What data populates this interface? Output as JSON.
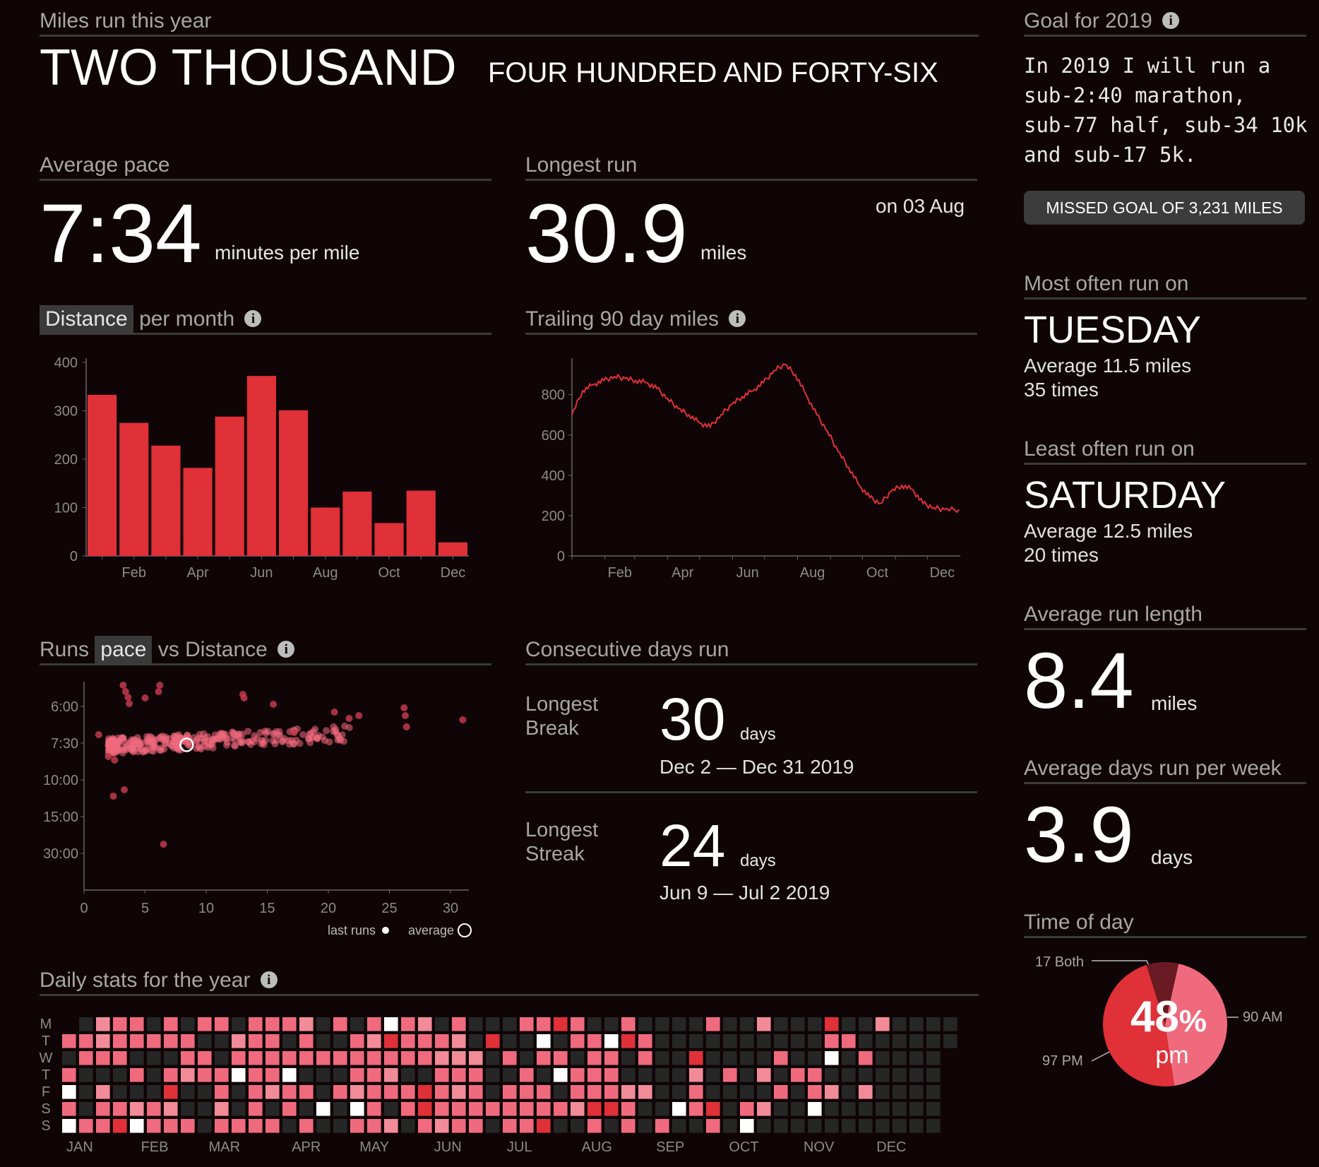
{
  "header": {
    "title": "Miles run this year",
    "big_number": "TWO THOUSAND",
    "small_number": "FOUR HUNDRED AND FORTY-SIX"
  },
  "average_pace": {
    "title": "Average pace",
    "value": "7:34",
    "unit": "minutes per mile"
  },
  "longest_run": {
    "title": "Longest run",
    "value": "30.9",
    "unit": "miles",
    "date": "on 03 Aug"
  },
  "distance_chart": {
    "title_highlight": "Distance",
    "title_rest": "per month"
  },
  "trailing_chart": {
    "title": "Trailing 90 day miles"
  },
  "scatter_chart": {
    "title_pre": "Runs",
    "title_highlight": "pace",
    "title_post": "vs Distance",
    "legend_last": "last runs",
    "legend_avg": "average"
  },
  "consecutive": {
    "title": "Consecutive days run",
    "break_label_1": "Longest",
    "break_label_2": "Break",
    "break_value": "30",
    "break_unit": "days",
    "break_range": "Dec 2 — Dec 31 2019",
    "streak_label_1": "Longest",
    "streak_label_2": "Streak",
    "streak_value": "24",
    "streak_unit": "days",
    "streak_range": "Jun 9 — Jul 2 2019"
  },
  "daily": {
    "title": "Daily stats for the year",
    "day_labels": [
      "M",
      "T",
      "W",
      "T",
      "F",
      "S",
      "S"
    ],
    "month_labels": [
      "JAN",
      "FEB",
      "MAR",
      "APR",
      "MAY",
      "JUN",
      "JUL",
      "AUG",
      "SEP",
      "OCT",
      "NOV",
      "DEC"
    ]
  },
  "goal": {
    "title": "Goal for 2019",
    "lines": [
      "In 2019 I will run a",
      "sub-2:40 marathon,",
      "sub-77 half, sub-34 10k",
      "and sub-17 5k."
    ],
    "missed": "MISSED GOAL OF 3,231 MILES"
  },
  "most_often": {
    "title": "Most often run on",
    "day": "TUESDAY",
    "avg": "Average 11.5 miles",
    "times": "35 times"
  },
  "least_often": {
    "title": "Least often run on",
    "day": "SATURDAY",
    "avg": "Average 12.5 miles",
    "times": "20 times"
  },
  "avg_run_length": {
    "title": "Average run length",
    "value": "8.4",
    "unit": "miles"
  },
  "avg_days_week": {
    "title": "Average days run per week",
    "value": "3.9",
    "unit": "days"
  },
  "time_of_day": {
    "title": "Time of day",
    "both_label": "17 Both",
    "am_label": "90 AM",
    "pm_label": "97 PM",
    "percent": "48",
    "percent_sign": "%",
    "center_label": "pm"
  },
  "colors": {
    "accent": "#e03038",
    "pink": "#f06a7e",
    "light": "#f28b98",
    "dark_cell": "#262626",
    "background": "#0f0406"
  },
  "chart_data": [
    {
      "type": "bar",
      "title": "Distance per month",
      "categories": [
        "Jan",
        "Feb",
        "Mar",
        "Apr",
        "May",
        "Jun",
        "Jul",
        "Aug",
        "Sep",
        "Oct",
        "Nov",
        "Dec"
      ],
      "values": [
        333,
        275,
        228,
        182,
        288,
        372,
        301,
        100,
        133,
        68,
        135,
        28
      ],
      "x_tick_labels": [
        "Feb",
        "Apr",
        "Jun",
        "Aug",
        "Oct",
        "Dec"
      ],
      "y_ticks": [
        0,
        100,
        200,
        300,
        400
      ],
      "ylim": [
        0,
        400
      ],
      "color": "#e03038"
    },
    {
      "type": "line",
      "title": "Trailing 90 day miles",
      "x": [
        0,
        10,
        20,
        30,
        40,
        50,
        60,
        70,
        80,
        90,
        100,
        110,
        120,
        130,
        140,
        150,
        160,
        170,
        180,
        190,
        200,
        210,
        220,
        230,
        240,
        250,
        260,
        270,
        280,
        290,
        300,
        310,
        320,
        330,
        340,
        350,
        364
      ],
      "x_unit": "day of year",
      "values": [
        700,
        820,
        850,
        870,
        890,
        880,
        870,
        860,
        830,
        780,
        730,
        700,
        660,
        640,
        700,
        750,
        790,
        820,
        860,
        920,
        950,
        900,
        800,
        700,
        620,
        520,
        440,
        350,
        290,
        260,
        320,
        350,
        330,
        260,
        240,
        230,
        230
      ],
      "x_tick_labels": [
        "Feb",
        "Apr",
        "Jun",
        "Aug",
        "Oct",
        "Dec"
      ],
      "y_ticks": [
        0,
        200,
        400,
        600,
        800
      ],
      "ylim": [
        0,
        960
      ],
      "color": "#e03038"
    },
    {
      "type": "scatter",
      "title": "Runs pace vs Distance",
      "x_ticks": [
        0,
        5,
        10,
        15,
        20,
        25,
        30
      ],
      "y_tick_labels": [
        "6:00",
        "7:30",
        "10:00",
        "15:00",
        "30:00"
      ],
      "xlim": [
        0,
        31.5
      ],
      "average": {
        "distance": 8.4,
        "pace": "7:34"
      },
      "legend": [
        "last runs",
        "average"
      ]
    },
    {
      "type": "pie",
      "title": "Time of day",
      "slices": [
        {
          "label": "PM",
          "value": 97,
          "color": "#e03038"
        },
        {
          "label": "AM",
          "value": 90,
          "color": "#f06a7e"
        },
        {
          "label": "Both",
          "value": 17,
          "color": "#6a1a22"
        }
      ]
    }
  ]
}
